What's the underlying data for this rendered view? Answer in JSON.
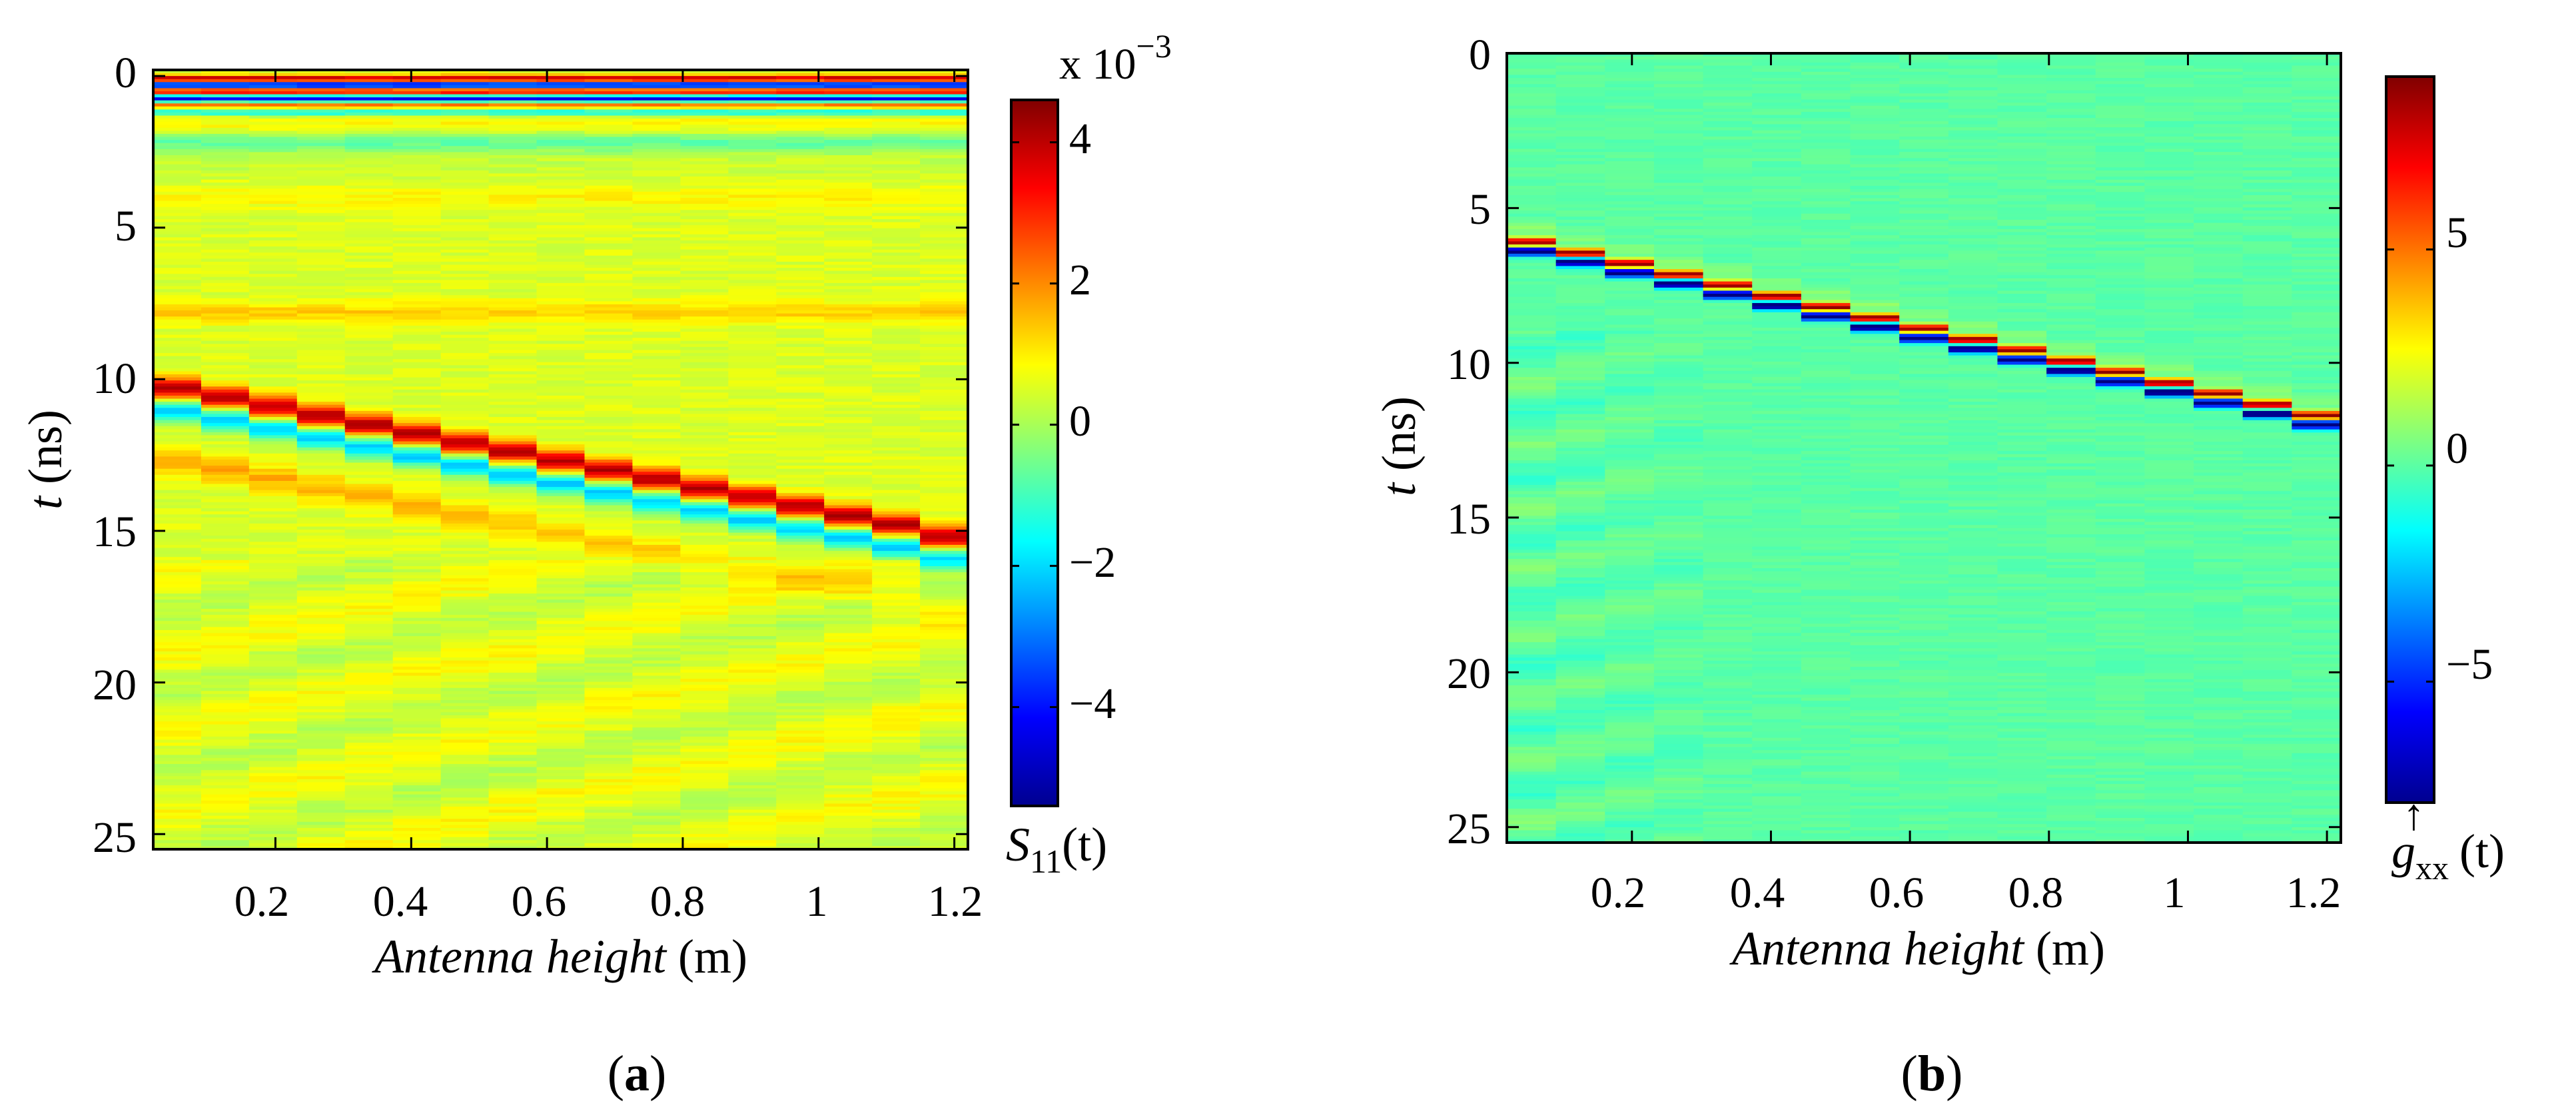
{
  "chart_data": [
    {
      "type": "heatmap",
      "panel": "a",
      "caption_open": "(",
      "caption_label": "a",
      "caption_close": ")",
      "xlabel_text": "Antenna height",
      "xlabel_unit": "(m)",
      "ylabel_var": "t",
      "ylabel_unit": "(ns)",
      "xlim": [
        0.02,
        1.22
      ],
      "ylim": [
        25.5,
        -0.2
      ],
      "xticks": [
        0.2,
        0.4,
        0.6,
        0.8,
        1,
        1.2
      ],
      "xtick_labels": [
        "0.2",
        "0.4",
        "0.6",
        "0.8",
        "1",
        "1.2"
      ],
      "yticks": [
        0,
        5,
        10,
        15,
        20,
        25
      ],
      "ytick_labels": [
        "0",
        "5",
        "10",
        "15",
        "20",
        "25"
      ],
      "colorbar": {
        "clim": [
          -5.4,
          4.6
        ],
        "ticks": [
          -4,
          -2,
          0,
          2,
          4
        ],
        "tick_labels": [
          "−4",
          "−2",
          "0",
          "2",
          "4"
        ],
        "exponent_prefix": "x 10",
        "exponent_power": "−3",
        "label_main": "S",
        "label_sub": "11",
        "label_arg": "(t)"
      },
      "n_columns": 17,
      "column_heights_m": [
        0.02,
        0.092,
        0.164,
        0.236,
        0.308,
        0.38,
        0.452,
        0.524,
        0.596,
        0.668,
        0.74,
        0.812,
        0.884,
        0.956,
        1.028,
        1.1,
        1.172
      ],
      "reflection_peak_ns": [
        10.3,
        10.6,
        10.9,
        11.2,
        11.5,
        11.8,
        12.1,
        12.4,
        12.7,
        13.0,
        13.3,
        13.6,
        13.9,
        14.2,
        14.5,
        14.8,
        15.2
      ],
      "reflection_amplitude": 3.6,
      "background_level": 0.5,
      "top_bands": [
        {
          "t_ns": 0.1,
          "value": 4.4
        },
        {
          "t_ns": 0.3,
          "value": -5.2
        },
        {
          "t_ns": 0.5,
          "value": 4.0
        },
        {
          "t_ns": 0.75,
          "value": -4.4
        },
        {
          "t_ns": 0.95,
          "value": 2.4
        },
        {
          "t_ns": 1.2,
          "value": -1.6
        },
        {
          "t_ns": 1.6,
          "value": 0.9
        },
        {
          "t_ns": 2.2,
          "value": -0.7
        },
        {
          "t_ns": 3.0,
          "value": 0.3
        },
        {
          "t_ns": 4.0,
          "value": 0.9
        },
        {
          "t_ns": 7.8,
          "value": 1.3
        }
      ]
    },
    {
      "type": "heatmap",
      "panel": "b",
      "caption_open": "(",
      "caption_label": "b",
      "caption_close": ")",
      "xlabel_text": "Antenna height",
      "xlabel_unit": "(m)",
      "ylabel_var": "t",
      "ylabel_unit": "(ns)",
      "xlim": [
        0.02,
        1.22
      ],
      "ylim": [
        25.5,
        0
      ],
      "xticks": [
        0.2,
        0.4,
        0.6,
        0.8,
        1,
        1.2
      ],
      "xtick_labels": [
        "0.2",
        "0.4",
        "0.6",
        "0.8",
        "1",
        "1.2"
      ],
      "yticks": [
        0,
        5,
        10,
        15,
        20,
        25
      ],
      "ytick_labels": [
        "0",
        "5",
        "10",
        "15",
        "20",
        "25"
      ],
      "colorbar": {
        "clim": [
          -7.8,
          9.0
        ],
        "ticks": [
          -5,
          0,
          5
        ],
        "tick_labels": [
          "−5",
          "0",
          "5"
        ],
        "label_main": "g",
        "label_sub": "xx",
        "label_sup": "↑",
        "label_arg": "(t)"
      },
      "n_columns": 17,
      "column_heights_m": [
        0.02,
        0.092,
        0.164,
        0.236,
        0.308,
        0.38,
        0.452,
        0.524,
        0.596,
        0.668,
        0.74,
        0.812,
        0.884,
        0.956,
        1.028,
        1.1,
        1.172
      ],
      "reflection_peak_ns": [
        6.1,
        6.45,
        6.8,
        7.15,
        7.5,
        7.85,
        8.2,
        8.55,
        8.9,
        9.25,
        9.6,
        9.95,
        10.3,
        10.65,
        11.0,
        11.35,
        11.7
      ],
      "reflection_amplitude": 8.8,
      "background_level": 0.0
    }
  ]
}
